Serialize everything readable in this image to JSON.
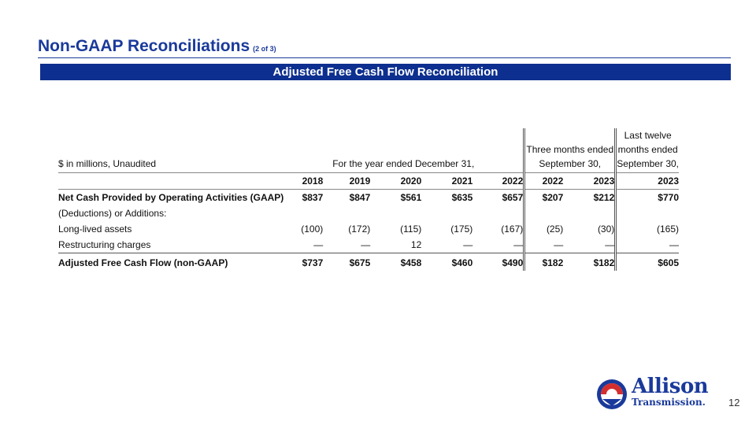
{
  "header": {
    "title": "Non-GAAP Reconciliations",
    "subtitle": "(2 of 3)",
    "banner": "Adjusted Free Cash Flow Reconciliation"
  },
  "table": {
    "units_label": "$ in millions, Unaudited",
    "group_year": "For the year ended December 31,",
    "group_three_line1": "Three months ended",
    "group_three_line2": "September 30,",
    "group_ltm_line1": "Last twelve",
    "group_ltm_line2": "months ended",
    "group_ltm_line3": "September 30,",
    "columns": [
      "2018",
      "2019",
      "2020",
      "2021",
      "2022",
      "2022",
      "2023",
      "2023"
    ],
    "rows": [
      {
        "label": "Net Cash Provided by Operating Activities (GAAP)",
        "values": [
          "$837",
          "$847",
          "$561",
          "$635",
          "$657",
          "$207",
          "$212",
          "$770"
        ]
      },
      {
        "label": "(Deductions) or Additions:",
        "values": [
          "",
          "",
          "",
          "",
          "",
          "",
          "",
          ""
        ]
      },
      {
        "label": "Long-lived assets",
        "values": [
          "(100)",
          "(172)",
          "(115)",
          "(175)",
          "(167)",
          "(25)",
          "(30)",
          "(165)"
        ]
      },
      {
        "label": "Restructuring charges",
        "values": [
          "—",
          "—",
          "12",
          "—",
          "—",
          "—",
          "—",
          "—"
        ]
      },
      {
        "label": "Adjusted Free Cash Flow (non-GAAP)",
        "values": [
          "$737",
          "$675",
          "$458",
          "$460",
          "$490",
          "$182",
          "$182",
          "$605"
        ]
      }
    ]
  },
  "logo": {
    "name": "Allison",
    "subname": "Transmission."
  },
  "page_number": "12",
  "colors": {
    "brand_blue": "#1a3a9b",
    "banner_blue": "#0d2f8f",
    "logo_red": "#d32f2f"
  }
}
